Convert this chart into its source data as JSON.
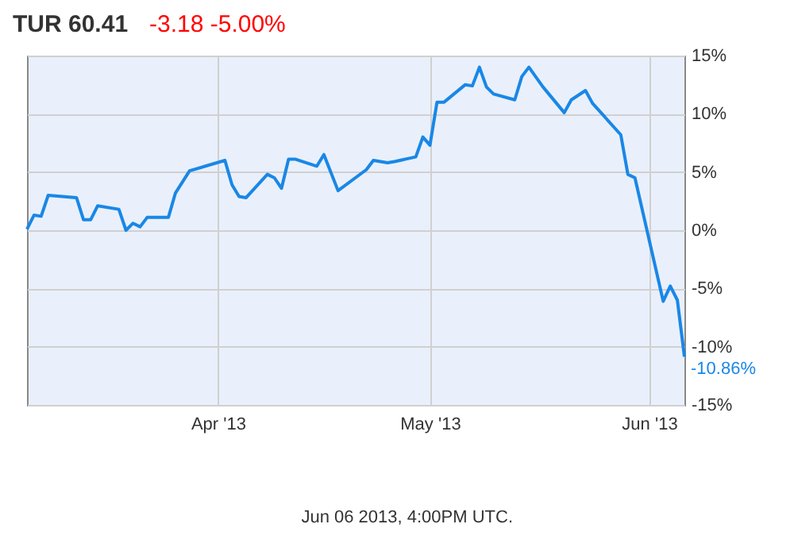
{
  "chart_data": {
    "type": "line",
    "title": "TUR  60.41",
    "subtitle": "-3.18  -5.00%",
    "x": [
      "2013-03-05",
      "2013-03-06",
      "2013-03-07",
      "2013-03-08",
      "2013-03-12",
      "2013-03-13",
      "2013-03-14",
      "2013-03-15",
      "2013-03-18",
      "2013-03-19",
      "2013-03-20",
      "2013-03-21",
      "2013-03-22",
      "2013-03-25",
      "2013-03-26",
      "2013-03-28",
      "2013-04-02",
      "2013-04-03",
      "2013-04-04",
      "2013-04-05",
      "2013-04-08",
      "2013-04-09",
      "2013-04-10",
      "2013-04-11",
      "2013-04-12",
      "2013-04-15",
      "2013-04-16",
      "2013-04-18",
      "2013-04-22",
      "2013-04-23",
      "2013-04-25",
      "2013-04-26",
      "2013-04-29",
      "2013-04-30",
      "2013-05-01",
      "2013-05-02",
      "2013-05-03",
      "2013-05-06",
      "2013-05-07",
      "2013-05-08",
      "2013-05-09",
      "2013-05-10",
      "2013-05-13",
      "2013-05-14",
      "2013-05-15",
      "2013-05-17",
      "2013-05-20",
      "2013-05-21",
      "2013-05-23",
      "2013-05-24",
      "2013-05-28",
      "2013-05-29",
      "2013-05-30",
      "2013-06-03",
      "2013-06-04",
      "2013-06-05",
      "2013-06-06"
    ],
    "series": [
      {
        "color": "#1a87e6",
        "values": [
          0.1,
          1.3,
          1.2,
          3.0,
          2.8,
          0.9,
          0.9,
          2.1,
          1.8,
          0.0,
          0.6,
          0.3,
          1.1,
          1.1,
          3.2,
          5.1,
          6.0,
          3.9,
          2.9,
          2.8,
          4.8,
          4.5,
          3.6,
          6.1,
          6.1,
          5.5,
          6.5,
          3.4,
          5.2,
          6.0,
          5.8,
          5.9,
          6.3,
          8.0,
          7.3,
          11.0,
          11.0,
          12.5,
          12.4,
          14.0,
          12.3,
          11.7,
          11.2,
          13.2,
          14.0,
          12.3,
          10.1,
          11.2,
          12.0,
          10.9,
          8.2,
          4.8,
          4.5,
          -6.1,
          -4.8,
          -6.0,
          -10.86
        ]
      }
    ],
    "xlim": [
      "2013-03-05",
      "2013-06-06"
    ],
    "xticks": [
      {
        "value": "2013-04-01",
        "label": "Apr '13"
      },
      {
        "value": "2013-05-01",
        "label": "May '13"
      },
      {
        "value": "2013-06-01",
        "label": "Jun '13"
      }
    ],
    "ylim": [
      -15,
      15
    ],
    "yticks": [
      {
        "value": -15,
        "label": "-15%"
      },
      {
        "value": -10,
        "label": "-10%"
      },
      {
        "value": -5,
        "label": "-5%"
      },
      {
        "value": 0,
        "label": "0%"
      },
      {
        "value": 5,
        "label": "5%"
      },
      {
        "value": 10,
        "label": "10%"
      },
      {
        "value": 15,
        "label": "15%"
      }
    ],
    "grid": true,
    "marker": "none",
    "line_style": "solid",
    "annotations": [
      {
        "text": "-10.86%",
        "x": "2013-06-06",
        "y": -10.86
      },
      "Jun 06 2013, 4:00PM UTC."
    ]
  }
}
